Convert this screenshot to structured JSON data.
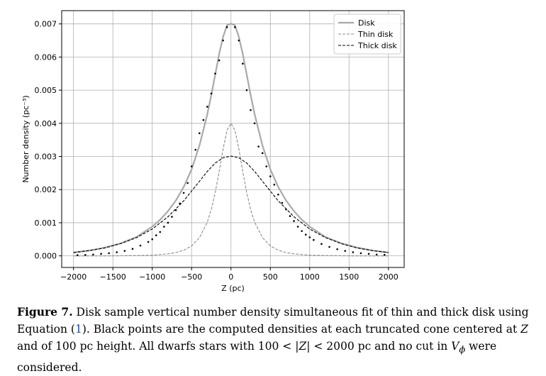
{
  "chart_data": {
    "type": "line",
    "xlabel": "Z (pc)",
    "ylabel": "Number density (pc⁻³)",
    "xlim": [
      -2150,
      2200
    ],
    "ylim": [
      -0.00035,
      0.0074
    ],
    "xticks": [
      -2000,
      -1500,
      -1000,
      -500,
      0,
      500,
      1000,
      1500,
      2000
    ],
    "xtick_labels": [
      "−2000",
      "−1500",
      "−1000",
      "−500",
      "0",
      "500",
      "1000",
      "1500",
      "2000"
    ],
    "yticks": [
      0.0,
      0.001,
      0.002,
      0.003,
      0.004,
      0.005,
      0.006,
      0.007
    ],
    "ytick_labels": [
      "0.000",
      "0.001",
      "0.002",
      "0.003",
      "0.004",
      "0.005",
      "0.006",
      "0.007"
    ],
    "grid": true,
    "legend_position": "top-right",
    "series": [
      {
        "name": "Disk",
        "style": "solid",
        "color": "#a9a9a9",
        "x": [
          -2000,
          -1800,
          -1600,
          -1400,
          -1200,
          -1000,
          -900,
          -800,
          -700,
          -600,
          -500,
          -400,
          -300,
          -250,
          -200,
          -150,
          -100,
          -50,
          0,
          50,
          100,
          150,
          200,
          250,
          300,
          400,
          500,
          600,
          700,
          800,
          900,
          1000,
          1200,
          1400,
          1600,
          1800,
          2000
        ],
        "y": [
          0.0001,
          0.00016,
          0.00025,
          0.00038,
          0.00057,
          0.00088,
          0.00109,
          0.00135,
          0.00167,
          0.00208,
          0.00261,
          0.00333,
          0.00428,
          0.00485,
          0.00547,
          0.00609,
          0.00661,
          0.00696,
          0.00701,
          0.00696,
          0.00661,
          0.00609,
          0.00547,
          0.00485,
          0.00428,
          0.00333,
          0.00261,
          0.00208,
          0.00167,
          0.00135,
          0.00109,
          0.00088,
          0.00057,
          0.00038,
          0.00025,
          0.00016,
          0.0001
        ]
      },
      {
        "name": "Thin disk",
        "style": "dashed",
        "color": "#8c8c8c",
        "x": [
          -2000,
          -1500,
          -1200,
          -1000,
          -800,
          -700,
          -600,
          -500,
          -400,
          -300,
          -250,
          -200,
          -150,
          -100,
          -50,
          0,
          50,
          100,
          150,
          200,
          250,
          300,
          400,
          500,
          600,
          700,
          800,
          1000,
          1200,
          1500,
          2000
        ],
        "y": [
          0.0,
          0.0,
          1e-05,
          2e-05,
          6e-05,
          0.0001,
          0.00017,
          0.0003,
          0.00055,
          0.00102,
          0.0014,
          0.00191,
          0.00254,
          0.00323,
          0.00379,
          0.004,
          0.00379,
          0.00323,
          0.00254,
          0.00191,
          0.0014,
          0.00102,
          0.00055,
          0.0003,
          0.00017,
          0.0001,
          6e-05,
          2e-05,
          1e-05,
          0.0,
          0.0
        ]
      },
      {
        "name": "Thick disk",
        "style": "dashed",
        "color": "#000000",
        "x": [
          -2000,
          -1800,
          -1600,
          -1400,
          -1200,
          -1000,
          -800,
          -600,
          -400,
          -300,
          -200,
          -100,
          0,
          100,
          200,
          300,
          400,
          600,
          800,
          1000,
          1200,
          1400,
          1600,
          1800,
          2000
        ],
        "y": [
          0.0001,
          0.00016,
          0.00024,
          0.00037,
          0.00055,
          0.00081,
          0.00118,
          0.00166,
          0.00225,
          0.00255,
          0.0028,
          0.00296,
          0.00301,
          0.00296,
          0.0028,
          0.00255,
          0.00225,
          0.00166,
          0.00118,
          0.00081,
          0.00055,
          0.00037,
          0.00024,
          0.00016,
          0.0001
        ]
      },
      {
        "name": "",
        "style": "points",
        "color": "#000000",
        "x": [
          -1950,
          -1850,
          -1750,
          -1650,
          -1550,
          -1450,
          -1350,
          -1250,
          -1150,
          -1050,
          -1000,
          -950,
          -900,
          -850,
          -800,
          -750,
          -700,
          -650,
          -600,
          -550,
          -500,
          -450,
          -400,
          -350,
          -300,
          -250,
          -200,
          -150,
          -100,
          -50,
          50,
          100,
          150,
          200,
          250,
          300,
          350,
          400,
          450,
          500,
          550,
          600,
          650,
          700,
          750,
          800,
          850,
          900,
          950,
          1000,
          1050,
          1150,
          1250,
          1350,
          1450,
          1550,
          1650,
          1750,
          1850,
          1950
        ],
        "y": [
          2e-05,
          3e-05,
          4e-05,
          6e-05,
          8e-05,
          0.00011,
          0.00015,
          0.00021,
          0.00031,
          0.00042,
          0.0005,
          0.00062,
          0.00072,
          0.00088,
          0.001,
          0.00118,
          0.00138,
          0.00158,
          0.0019,
          0.0022,
          0.0027,
          0.0032,
          0.0037,
          0.0041,
          0.0045,
          0.0049,
          0.0055,
          0.0059,
          0.0065,
          0.0069,
          0.0069,
          0.0065,
          0.0058,
          0.005,
          0.0044,
          0.004,
          0.0033,
          0.0031,
          0.0027,
          0.0024,
          0.00215,
          0.00185,
          0.0016,
          0.0014,
          0.0012,
          0.00105,
          0.00088,
          0.00075,
          0.00064,
          0.00056,
          0.00048,
          0.00036,
          0.00027,
          0.0002,
          0.00015,
          0.00011,
          8e-05,
          6e-05,
          4e-05,
          3e-05
        ]
      }
    ],
    "legend": [
      {
        "label": "Disk",
        "style": "solid",
        "color": "#a9a9a9"
      },
      {
        "label": "Thin disk",
        "style": "dashed",
        "color": "#8c8c8c"
      },
      {
        "label": "Thick disk",
        "style": "dashed",
        "color": "#000000"
      }
    ]
  },
  "caption": {
    "label": "Figure 7.",
    "part1": " Disk sample vertical number density simultaneous fit of thin and thick disk using Equation (",
    "ref": "1",
    "part2": "). Black points are the computed densities at each truncated cone centered at ",
    "z": "Z",
    "part3": " and of 100 pc height. All dwarfs stars with 100 < |",
    "z2": "Z",
    "part4": "| < 2000 pc and no cut in ",
    "v": "V",
    "vsub": "ϕ",
    "part5": " were considered."
  }
}
